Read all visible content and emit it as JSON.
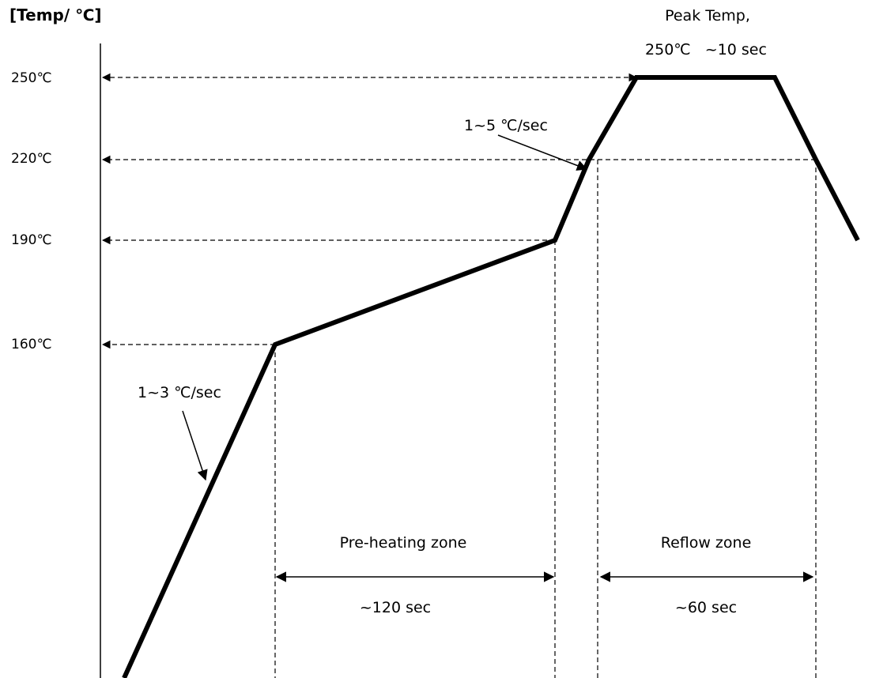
{
  "chart_data": {
    "type": "line",
    "ylabel": "[Temp/ ℃]",
    "y_ticks": [
      {
        "value": 250,
        "label": "250℃"
      },
      {
        "value": 220,
        "label": "220℃"
      },
      {
        "value": 190,
        "label": "190℃"
      },
      {
        "value": 160,
        "label": "160℃"
      }
    ],
    "series": [
      {
        "points": [
          {
            "t": 0,
            "temp": 92
          },
          {
            "t": 35,
            "temp": 160
          },
          {
            "t": 155,
            "temp": 190
          },
          {
            "t": 170,
            "temp": 220
          },
          {
            "t": 178,
            "temp": 250
          },
          {
            "t": 188,
            "temp": 250
          },
          {
            "t": 200,
            "temp": 220
          },
          {
            "t": 210,
            "temp": 190
          }
        ]
      }
    ],
    "annotations": {
      "peak_title": "Peak Temp,",
      "peak_value": "250℃   ~10 sec",
      "ramp_up_rate": "1~3 ℃/sec",
      "ramp_reflow_rate": "1~5 ℃/sec",
      "preheat_zone_label": "Pre-heating zone",
      "preheat_duration": "~120 sec",
      "reflow_zone_label": "Reflow zone",
      "reflow_duration": "~60 sec"
    },
    "grid": false,
    "legend": "none"
  }
}
